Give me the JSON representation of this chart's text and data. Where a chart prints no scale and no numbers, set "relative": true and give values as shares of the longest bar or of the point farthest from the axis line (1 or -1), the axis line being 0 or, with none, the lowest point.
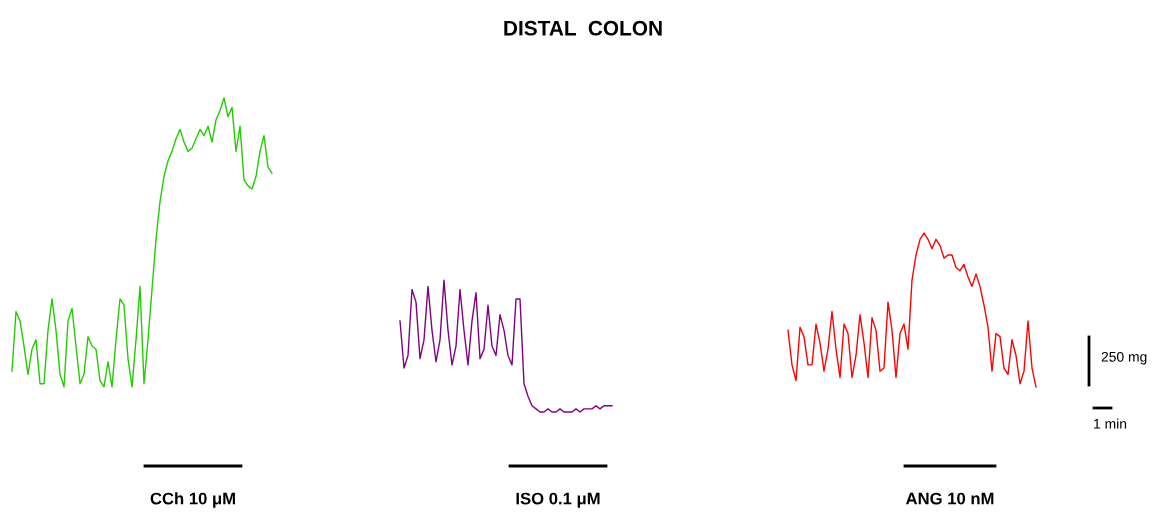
{
  "chart_data": {
    "type": "line",
    "title": "DISTAL  COLON",
    "relative": true,
    "grid": false,
    "legend": false,
    "categories": [
      null,
      null,
      null,
      null,
      null,
      null,
      null,
      null,
      null,
      null,
      null,
      null,
      null,
      null,
      null,
      null,
      null,
      null,
      null,
      null,
      null,
      null,
      null,
      null,
      null,
      null,
      null,
      null,
      null,
      null,
      null,
      null,
      null,
      null,
      null,
      null,
      null,
      null,
      null,
      null,
      null,
      null,
      null,
      null,
      null,
      null,
      null,
      null,
      null,
      null,
      null,
      null,
      null,
      null,
      null,
      null,
      null,
      null,
      null,
      null,
      null,
      null,
      null,
      null,
      null,
      null,
      null,
      null,
      null,
      null,
      null,
      null,
      null,
      null,
      null,
      null,
      null,
      null,
      null,
      null,
      null,
      null,
      null,
      null,
      null,
      null,
      null,
      null,
      null,
      null,
      null,
      null,
      null,
      null,
      null,
      null,
      null,
      null,
      null,
      null,
      null,
      null,
      null,
      null,
      null,
      null,
      null,
      null,
      null,
      null,
      null,
      null,
      null,
      null,
      null,
      null,
      null,
      null,
      null,
      null,
      null,
      null,
      null,
      null,
      null,
      null,
      null,
      null,
      null,
      null,
      null,
      null,
      null,
      null,
      null,
      null,
      null,
      null,
      null,
      null,
      null,
      null,
      null,
      null,
      null,
      null,
      null,
      null,
      null,
      null,
      null,
      null,
      null,
      null,
      null,
      null,
      null,
      null,
      null,
      null,
      null,
      null,
      null,
      null,
      null,
      null,
      null,
      null,
      null,
      null,
      null,
      null,
      null,
      null,
      null,
      null,
      null,
      null,
      null,
      null,
      null,
      null,
      null,
      null,
      null,
      null,
      null,
      null,
      null,
      null,
      null,
      null,
      null,
      null,
      null,
      null,
      null,
      null,
      null,
      null,
      null,
      null,
      null,
      null,
      null,
      null,
      null,
      null,
      null,
      null,
      null,
      null,
      null,
      null,
      null,
      null,
      null,
      null,
      null,
      null,
      null,
      null,
      null,
      null,
      null,
      null,
      null,
      null,
      null,
      null,
      null,
      null,
      null,
      null,
      null,
      null,
      null,
      null,
      null,
      null,
      null,
      null,
      null,
      null,
      null,
      null,
      null,
      null,
      null,
      null,
      null,
      null,
      null,
      null,
      null,
      null,
      null
    ],
    "series": [
      {
        "color": "#22cc00",
        "values": [
          0.13,
          0.32,
          0.29,
          0.21,
          0.12,
          0.2,
          0.23,
          0.09,
          0.09,
          0.26,
          0.36,
          0.26,
          0.12,
          0.08,
          0.29,
          0.33,
          0.21,
          0.09,
          0.12,
          0.24,
          0.21,
          0.2,
          0.1,
          0.08,
          0.16,
          0.08,
          0.23,
          0.36,
          0.34,
          0.17,
          0.08,
          0.23,
          0.4,
          0.09,
          0.23,
          0.39,
          0.55,
          0.67,
          0.75,
          0.8,
          0.83,
          0.87,
          0.9,
          0.86,
          0.83,
          0.84,
          0.87,
          0.9,
          0.88,
          0.91,
          0.86,
          0.93,
          0.96,
          1.0,
          0.94,
          0.97,
          0.83,
          0.91,
          0.74,
          0.72,
          0.71,
          0.75,
          0.83,
          0.88,
          0.78,
          0.76,
          null,
          null,
          null,
          null,
          null,
          null,
          null,
          null,
          null,
          null,
          null,
          null,
          null,
          null,
          null,
          null,
          null,
          null,
          null,
          null,
          null,
          null,
          null,
          null,
          null,
          null,
          null,
          null,
          null,
          null,
          null,
          null,
          null,
          null,
          null,
          null,
          null,
          null,
          null,
          null,
          null,
          null,
          null,
          null,
          null,
          null,
          null,
          null,
          null,
          null,
          null,
          null,
          null,
          null,
          null,
          null,
          null,
          null,
          null,
          null,
          null,
          null,
          null,
          null,
          null,
          null,
          null,
          null,
          null,
          null,
          null,
          null,
          null,
          null,
          null,
          null,
          null,
          null,
          null,
          null,
          null,
          null,
          null,
          null,
          null,
          null,
          null,
          null,
          null,
          null,
          null,
          null,
          null,
          null,
          null,
          null,
          null,
          null,
          null,
          null,
          null,
          null,
          null,
          null,
          null,
          null,
          null,
          null,
          null,
          null,
          null,
          null,
          null,
          null,
          null,
          null,
          null,
          null,
          null,
          null,
          null,
          null,
          null,
          null,
          null,
          null,
          null,
          null,
          null,
          null,
          null,
          null,
          null,
          null,
          null,
          null,
          null,
          null,
          null,
          null,
          null,
          null,
          null,
          null,
          null,
          null,
          null,
          null,
          null,
          null,
          null,
          null,
          null,
          null,
          null,
          null,
          null,
          null,
          null,
          null,
          null,
          null,
          null,
          null,
          null,
          null,
          null,
          null,
          null,
          null,
          null,
          null,
          null,
          null,
          null,
          null,
          null,
          null,
          null,
          null,
          null,
          null,
          null,
          null,
          null,
          null,
          null,
          null,
          null,
          null,
          null
        ]
      },
      {
        "color": "#800080",
        "values": [
          null,
          null,
          null,
          null,
          null,
          null,
          null,
          null,
          null,
          null,
          null,
          null,
          null,
          null,
          null,
          null,
          null,
          null,
          null,
          null,
          null,
          null,
          null,
          null,
          null,
          null,
          null,
          null,
          null,
          null,
          null,
          null,
          null,
          null,
          null,
          null,
          null,
          null,
          null,
          null,
          null,
          null,
          null,
          null,
          null,
          null,
          null,
          null,
          null,
          null,
          null,
          null,
          null,
          null,
          null,
          null,
          null,
          null,
          null,
          null,
          null,
          null,
          null,
          null,
          null,
          null,
          null,
          null,
          null,
          null,
          null,
          null,
          null,
          null,
          null,
          null,
          null,
          null,
          null,
          null,
          null,
          null,
          null,
          null,
          null,
          null,
          null,
          null,
          null,
          null,
          null,
          null,
          null,
          null,
          null,
          null,
          null,
          0.29,
          0.14,
          0.18,
          0.39,
          0.35,
          0.17,
          0.23,
          0.4,
          0.26,
          0.16,
          0.23,
          0.42,
          0.26,
          0.15,
          0.21,
          0.39,
          0.26,
          0.15,
          0.29,
          0.38,
          0.17,
          0.2,
          0.34,
          0.21,
          0.18,
          0.31,
          0.26,
          0.18,
          0.15,
          0.36,
          0.36,
          0.09,
          0.05,
          0.02,
          0.01,
          0.0,
          0.0,
          0.01,
          0.0,
          0.0,
          0.01,
          0.0,
          0.0,
          0.0,
          0.01,
          0.0,
          0.01,
          0.01,
          0.01,
          0.02,
          0.01,
          0.02,
          0.02,
          0.02,
          null,
          null,
          null,
          null,
          null,
          null,
          null,
          null,
          null,
          null,
          null,
          null,
          null,
          null,
          null,
          null,
          null,
          null,
          null,
          null,
          null,
          null,
          null,
          null,
          null,
          null,
          null,
          null,
          null,
          null,
          null,
          null,
          null,
          null,
          null,
          null,
          null,
          null,
          null,
          null,
          null,
          null,
          null,
          null,
          null,
          null,
          null,
          null,
          null,
          null,
          null,
          null,
          null,
          null,
          null,
          null,
          null,
          null,
          null,
          null,
          null,
          null,
          null,
          null,
          null,
          null,
          null,
          null,
          null,
          null,
          null,
          null,
          null,
          null,
          null,
          null,
          null,
          null,
          null,
          null,
          null,
          null,
          null,
          null,
          null,
          null,
          null,
          null,
          null,
          null,
          null,
          null,
          null,
          null,
          null,
          null,
          null,
          null,
          null,
          null,
          null,
          null,
          null,
          null,
          null,
          null
        ]
      },
      {
        "color": "#ff0000",
        "values": [
          null,
          null,
          null,
          null,
          null,
          null,
          null,
          null,
          null,
          null,
          null,
          null,
          null,
          null,
          null,
          null,
          null,
          null,
          null,
          null,
          null,
          null,
          null,
          null,
          null,
          null,
          null,
          null,
          null,
          null,
          null,
          null,
          null,
          null,
          null,
          null,
          null,
          null,
          null,
          null,
          null,
          null,
          null,
          null,
          null,
          null,
          null,
          null,
          null,
          null,
          null,
          null,
          null,
          null,
          null,
          null,
          null,
          null,
          null,
          null,
          null,
          null,
          null,
          null,
          null,
          null,
          null,
          null,
          null,
          null,
          null,
          null,
          null,
          null,
          null,
          null,
          null,
          null,
          null,
          null,
          null,
          null,
          null,
          null,
          null,
          null,
          null,
          null,
          null,
          null,
          null,
          null,
          null,
          null,
          null,
          null,
          null,
          null,
          null,
          null,
          null,
          null,
          null,
          null,
          null,
          null,
          null,
          null,
          null,
          null,
          null,
          null,
          null,
          null,
          null,
          null,
          null,
          null,
          null,
          null,
          null,
          null,
          null,
          null,
          null,
          null,
          null,
          null,
          null,
          null,
          null,
          null,
          null,
          null,
          null,
          null,
          null,
          null,
          null,
          null,
          null,
          null,
          null,
          null,
          null,
          null,
          null,
          null,
          null,
          null,
          null,
          null,
          null,
          null,
          null,
          null,
          null,
          null,
          null,
          null,
          null,
          null,
          null,
          null,
          null,
          null,
          null,
          null,
          null,
          null,
          null,
          null,
          null,
          null,
          null,
          null,
          null,
          null,
          null,
          null,
          null,
          null,
          null,
          null,
          null,
          null,
          null,
          null,
          null,
          null,
          null,
          null,
          null,
          null,
          0.26,
          0.15,
          0.1,
          0.27,
          0.24,
          0.15,
          0.15,
          0.28,
          0.22,
          0.13,
          0.2,
          0.32,
          0.2,
          0.11,
          0.28,
          0.25,
          0.11,
          0.18,
          0.31,
          0.22,
          0.11,
          0.3,
          0.26,
          0.13,
          0.14,
          0.35,
          0.26,
          0.11,
          0.25,
          0.28,
          0.2,
          0.42,
          0.5,
          0.55,
          0.57,
          0.55,
          0.52,
          0.55,
          0.53,
          0.49,
          0.5,
          0.5,
          0.46,
          0.45,
          0.47,
          0.43,
          0.4,
          0.44,
          0.4,
          0.34,
          0.27,
          0.13,
          0.25,
          0.24,
          0.14,
          0.12,
          0.23,
          0.18,
          0.09,
          0.13,
          0.29,
          0.14,
          0.08
        ]
      }
    ],
    "annotations": [
      "CCh 10 μM",
      "ISO 0.1 μM",
      "ANG 10 nM",
      "250 mg",
      "1 min"
    ]
  }
}
